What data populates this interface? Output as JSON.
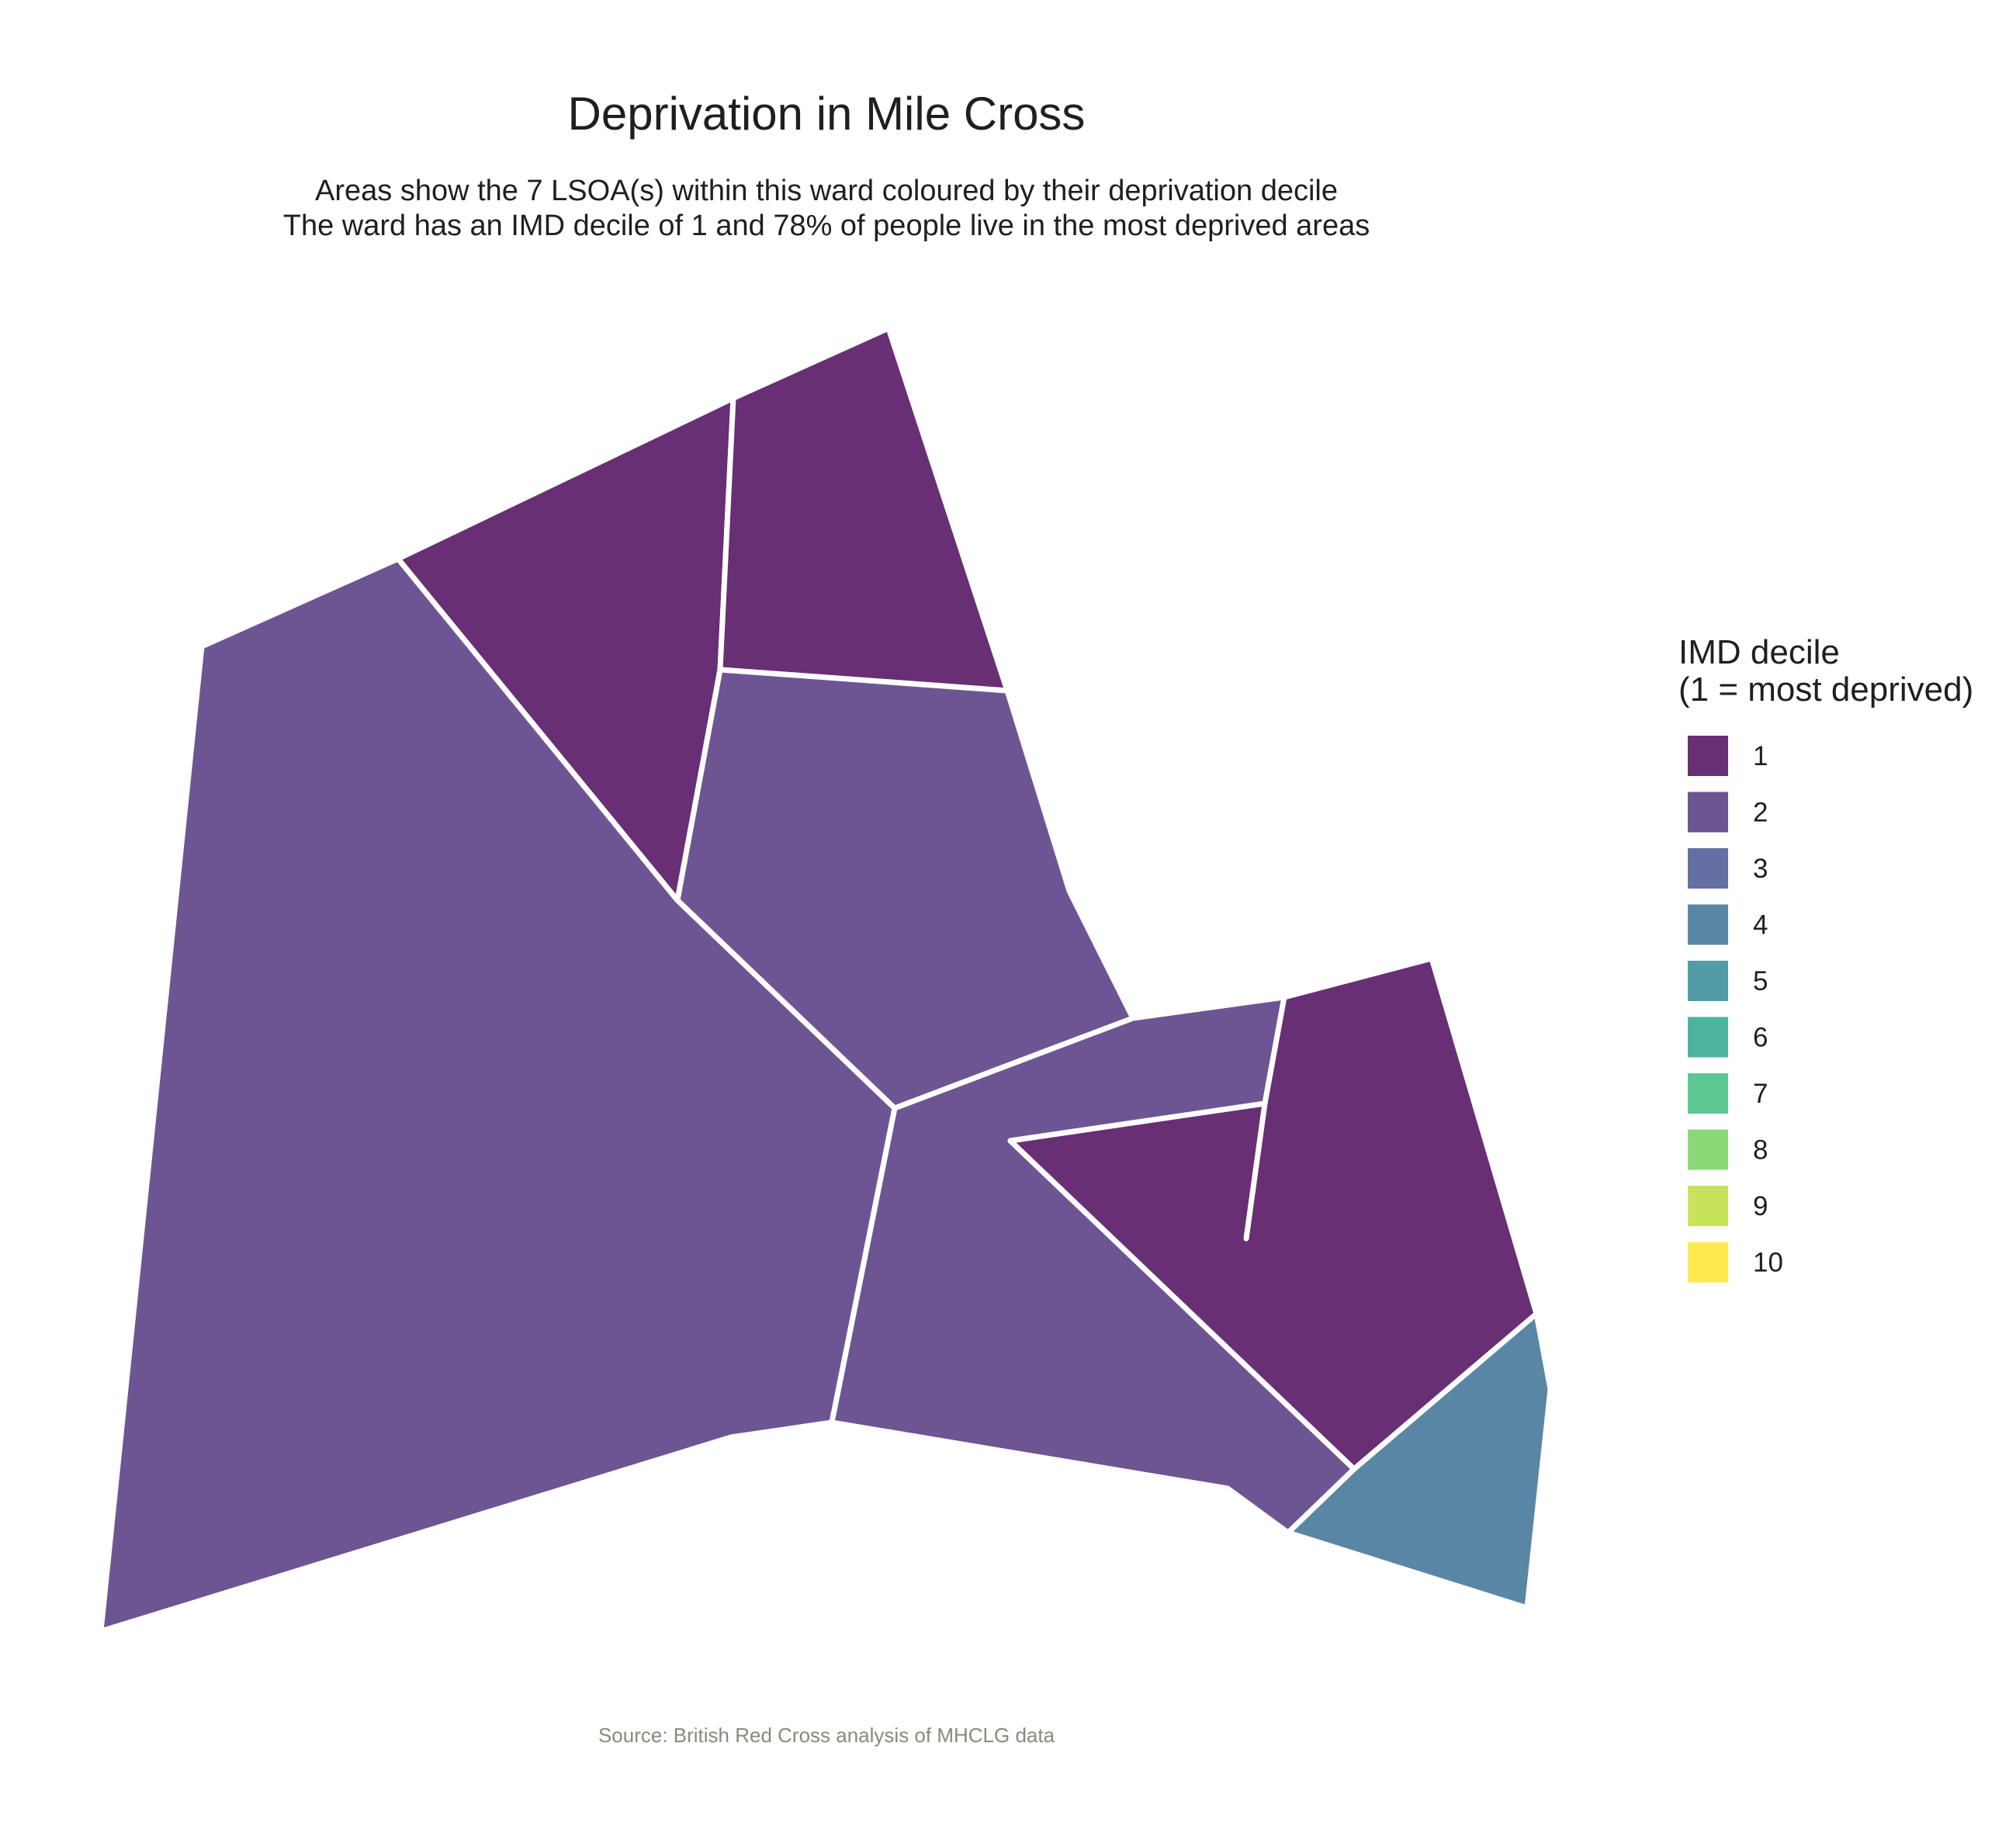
{
  "title": "Deprivation in Mile Cross",
  "subtitle_lines": [
    "Areas show the 7 LSOA(s) within this ward coloured by their deprivation decile",
    "The ward has an IMD decile of 1 and 78% of people live in the most deprived areas"
  ],
  "caption": "Source: British Red Cross analysis of MHCLG data",
  "legend": {
    "title_lines": [
      "IMD decile",
      "(1 = most deprived)"
    ],
    "items": [
      {
        "label": "1",
        "color": "#682f75"
      },
      {
        "label": "2",
        "color": "#6d5593"
      },
      {
        "label": "3",
        "color": "#646fa3"
      },
      {
        "label": "4",
        "color": "#5a86a5"
      },
      {
        "label": "5",
        "color": "#529ca6"
      },
      {
        "label": "6",
        "color": "#4db49f"
      },
      {
        "label": "7",
        "color": "#5bc893"
      },
      {
        "label": "8",
        "color": "#8bd878"
      },
      {
        "label": "9",
        "color": "#c7e35a"
      },
      {
        "label": "10",
        "color": "#fde94f"
      }
    ]
  },
  "areas": [
    {
      "name": "lsoa-west-large",
      "decile": 2
    },
    {
      "name": "lsoa-north-west",
      "decile": 1
    },
    {
      "name": "lsoa-north",
      "decile": 1
    },
    {
      "name": "lsoa-central",
      "decile": 2
    },
    {
      "name": "lsoa-south-central",
      "decile": 2
    },
    {
      "name": "lsoa-east",
      "decile": 1
    },
    {
      "name": "lsoa-south-east",
      "decile": 4
    }
  ]
}
